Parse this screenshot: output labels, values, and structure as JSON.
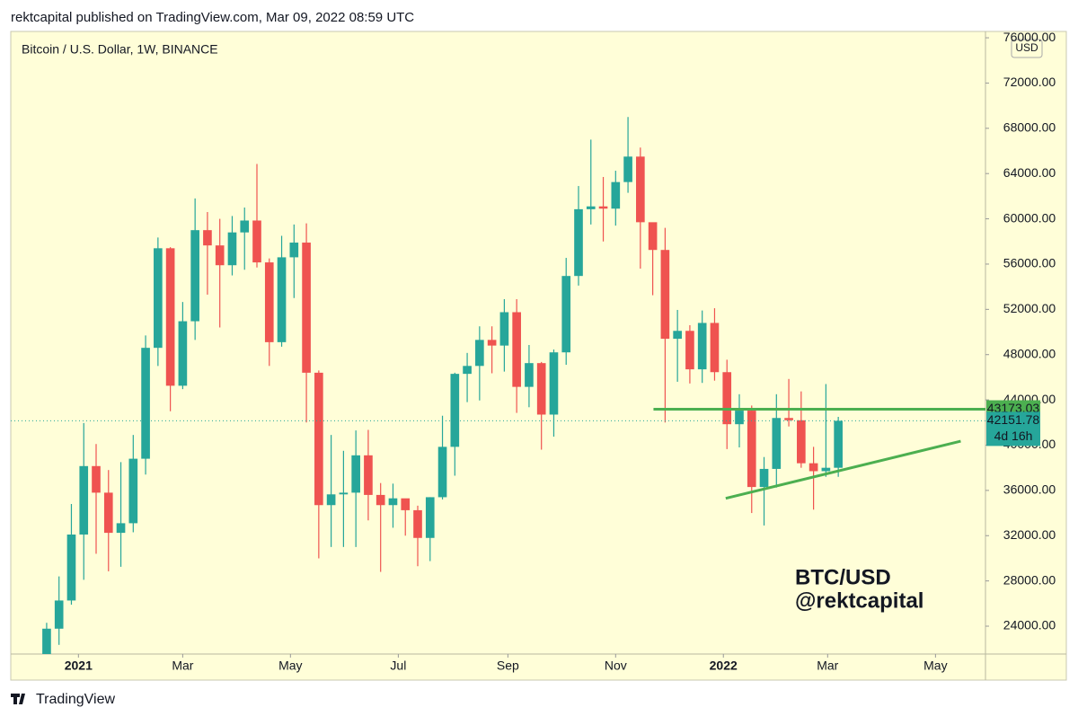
{
  "header": {
    "text": "rektcapital published on TradingView.com, Mar 09, 2022 08:59 UTC"
  },
  "footer": {
    "logo_text": "TradingView"
  },
  "chart_data": {
    "type": "candlestick",
    "title": "Bitcoin / U.S. Dollar, 1W, BINANCE",
    "y_unit": "USD",
    "annotations": [
      "BTC/USD",
      "@rektcapital"
    ],
    "countdown": "4d 16h",
    "up_color": "#26a69a",
    "down_color": "#ef5350",
    "open": [
      19270,
      23780,
      26270,
      32100,
      38150,
      35800,
      32250,
      33100,
      38800,
      48600,
      57400,
      45250,
      50950,
      59000,
      57650,
      55900,
      58800,
      59850,
      56150,
      49100,
      56600,
      57900,
      46400,
      34700,
      35650,
      35800,
      39100,
      35600,
      34700,
      35300,
      34250,
      31800,
      35400,
      39850,
      46300,
      47000,
      49300,
      48800,
      51750,
      45150,
      47250,
      42700,
      48200,
      54950,
      60850,
      61100,
      60900,
      63250,
      65500,
      59700,
      57250,
      49400,
      50100,
      46700,
      50800,
      46450,
      41850,
      43050,
      36300,
      37900,
      42400,
      42200,
      38400,
      37700,
      38000
    ],
    "high": [
      24300,
      28400,
      34800,
      41950,
      40100,
      37800,
      38500,
      40900,
      49700,
      58350,
      57500,
      52650,
      61800,
      60600,
      60000,
      60250,
      61000,
      64850,
      56500,
      58500,
      59500,
      59600,
      46600,
      40900,
      39500,
      41300,
      41350,
      36650,
      36600,
      35100,
      34650,
      35400,
      42600,
      46400,
      48150,
      50500,
      50500,
      52900,
      52900,
      48850,
      47350,
      48450,
      56550,
      62900,
      67000,
      63700,
      64250,
      69000,
      66300,
      59500,
      59200,
      51950,
      50600,
      51900,
      52100,
      47550,
      44500,
      43500,
      38950,
      44500,
      45850,
      44750,
      39850,
      45400,
      42500
    ],
    "low": [
      19000,
      22350,
      25900,
      28100,
      30400,
      28850,
      29250,
      32300,
      37400,
      47000,
      43000,
      44950,
      49300,
      53300,
      50400,
      55000,
      55500,
      55700,
      47000,
      48700,
      53000,
      42000,
      30000,
      31000,
      31000,
      31000,
      33350,
      28800,
      32700,
      32000,
      29300,
      29750,
      35200,
      37300,
      43800,
      43950,
      46350,
      46500,
      42850,
      43350,
      39600,
      40750,
      47100,
      54100,
      59500,
      58000,
      59400,
      62300,
      55600,
      53250,
      42000,
      45600,
      45450,
      45500,
      45700,
      39650,
      39800,
      34000,
      32900,
      36250,
      41650,
      38000,
      34300,
      37200,
      37200
    ],
    "close": [
      23780,
      26270,
      32100,
      38150,
      35800,
      32250,
      33100,
      38800,
      48600,
      57400,
      45250,
      50950,
      59000,
      57650,
      55900,
      58800,
      59850,
      56150,
      49100,
      56600,
      57900,
      46400,
      34700,
      35650,
      35800,
      39100,
      35600,
      34700,
      35300,
      34250,
      31800,
      35400,
      39850,
      46300,
      47000,
      49300,
      48800,
      51750,
      45150,
      47250,
      42700,
      48200,
      54950,
      60850,
      61100,
      60900,
      63250,
      65500,
      59700,
      57250,
      49400,
      50100,
      46700,
      50800,
      46450,
      41850,
      43050,
      36300,
      37900,
      42400,
      42200,
      38400,
      37700,
      38000,
      42151.78
    ],
    "xlim": [
      -2.9,
      75.9
    ],
    "xticks": [
      {
        "value": 2.57,
        "label": "2021"
      },
      {
        "value": 11,
        "label": "Mar"
      },
      {
        "value": 19.71,
        "label": "May"
      },
      {
        "value": 28.43,
        "label": "Jul"
      },
      {
        "value": 37.29,
        "label": "Sep"
      },
      {
        "value": 46,
        "label": "Nov"
      },
      {
        "value": 54.71,
        "label": "2022"
      },
      {
        "value": 63.14,
        "label": "Mar"
      },
      {
        "value": 71.86,
        "label": "May"
      }
    ],
    "ylim": [
      21540,
      76560
    ],
    "yticks": [
      {
        "value": 24000,
        "label": "24000.00"
      },
      {
        "value": 28000,
        "label": "28000.00"
      },
      {
        "value": 32000,
        "label": "32000.00"
      },
      {
        "value": 36000,
        "label": "36000.00"
      },
      {
        "value": 40000,
        "label": "40000.00"
      },
      {
        "value": 44000,
        "label": "44000.00"
      },
      {
        "value": 48000,
        "label": "48000.00"
      },
      {
        "value": 52000,
        "label": "52000.00"
      },
      {
        "value": 56000,
        "label": "56000.00"
      },
      {
        "value": 60000,
        "label": "60000.00"
      },
      {
        "value": 64000,
        "label": "64000.00"
      },
      {
        "value": 68000,
        "label": "68000.00"
      },
      {
        "value": 72000,
        "label": "72000.00"
      },
      {
        "value": 76000,
        "label": "76000.00"
      }
    ],
    "horizontal_line": {
      "value": 43173.03,
      "start_x": 49.06,
      "color": "#4caf50"
    },
    "trendline": {
      "x": [
        54.9,
        73.9
      ],
      "y": [
        35300,
        40350
      ],
      "color": "#4caf50"
    }
  }
}
